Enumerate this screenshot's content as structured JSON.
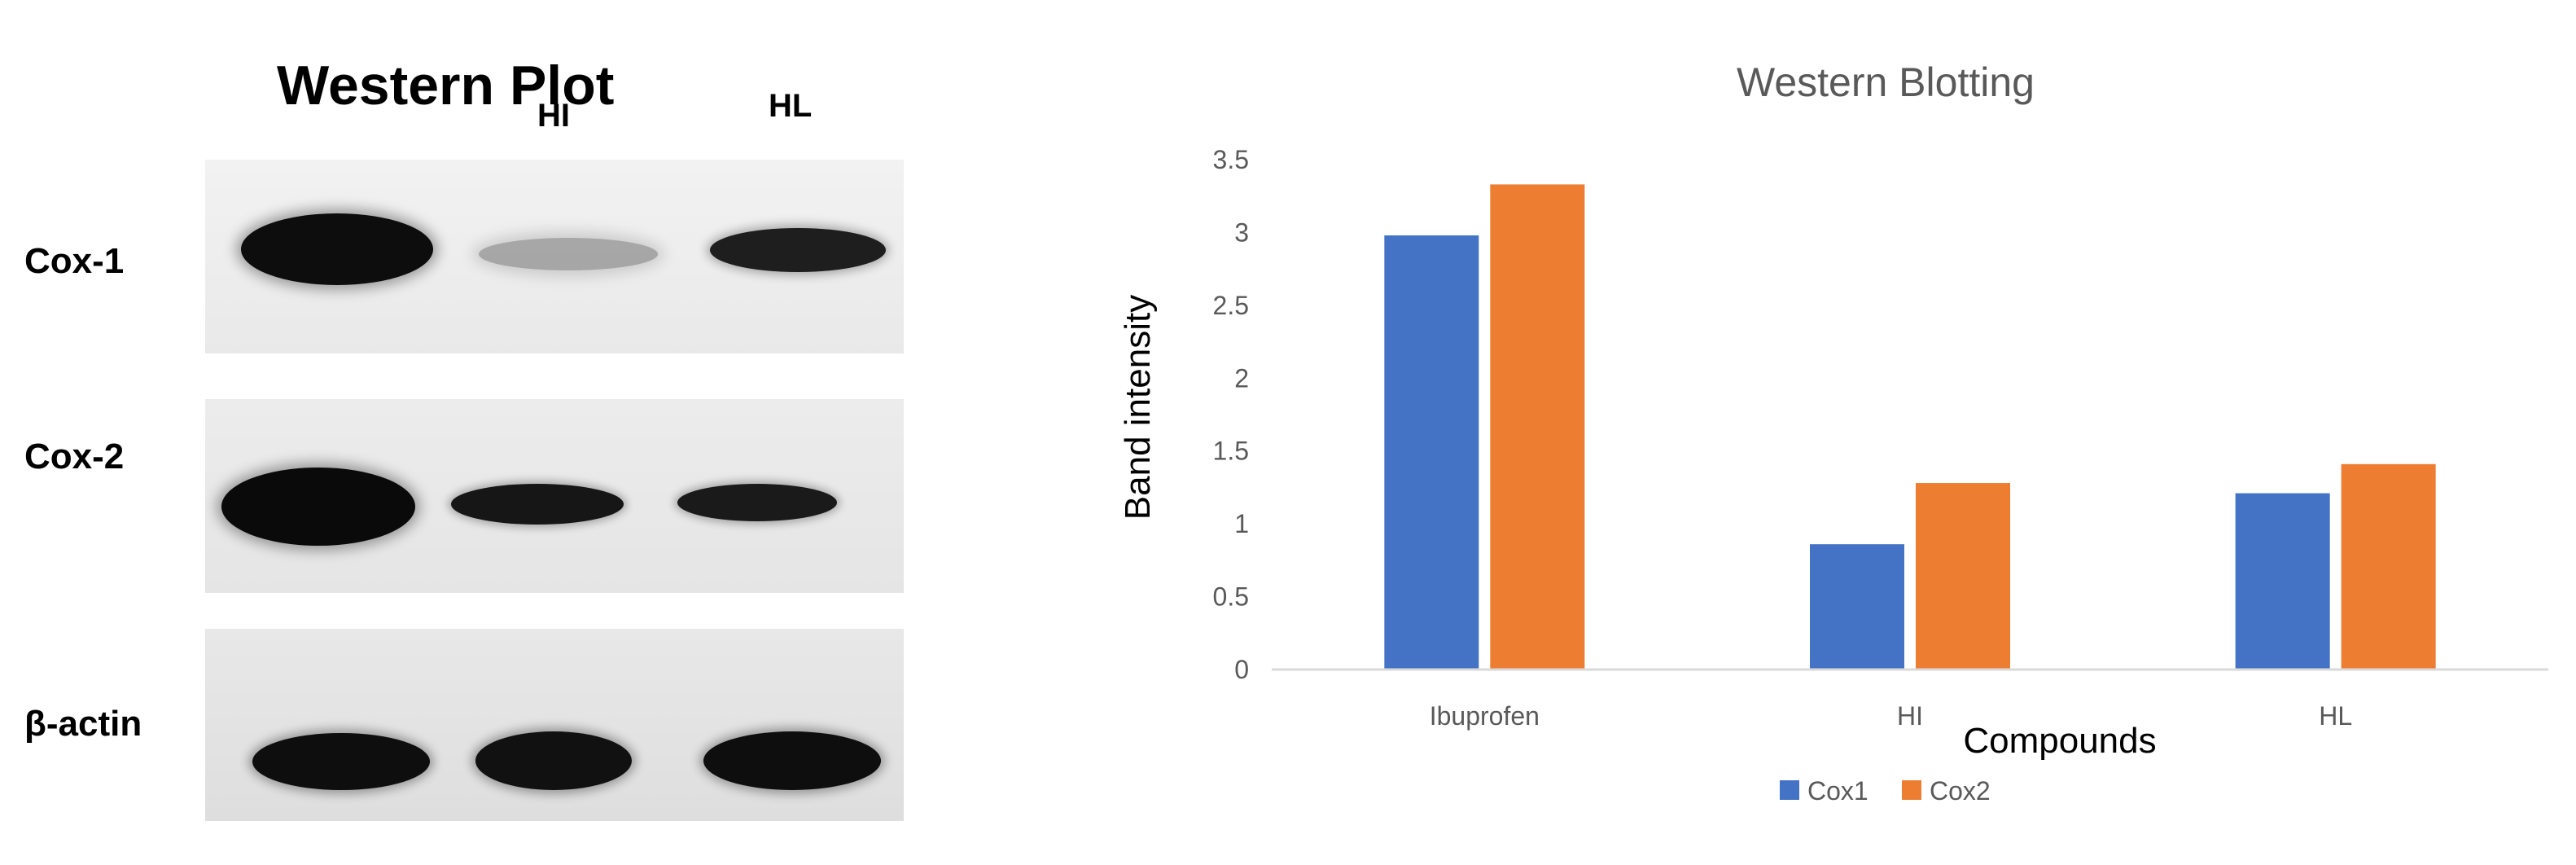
{
  "blot": {
    "title": "Western Plot",
    "lane_labels": [
      "HI",
      "HL"
    ],
    "rows": [
      {
        "label": "Cox-1"
      },
      {
        "label": "Cox-2"
      },
      {
        "label": "β-actin"
      }
    ]
  },
  "chart_data": {
    "type": "bar",
    "title": "Western Blotting",
    "xlabel": "Compounds",
    "ylabel": "Band intensity",
    "categories": [
      "Ibuprofen",
      "HI",
      "HL"
    ],
    "series": [
      {
        "name": "Cox1",
        "color": "#4472C4",
        "values": [
          2.98,
          0.86,
          1.21
        ]
      },
      {
        "name": "Cox2",
        "color": "#ED7D31",
        "values": [
          3.33,
          1.28,
          1.41
        ]
      }
    ],
    "yticks": [
      "0",
      "0.5",
      "1",
      "1.5",
      "2",
      "2.5",
      "3",
      "3.5"
    ],
    "ylim": [
      0,
      3.5
    ],
    "grid": false,
    "legend": "bottom"
  }
}
